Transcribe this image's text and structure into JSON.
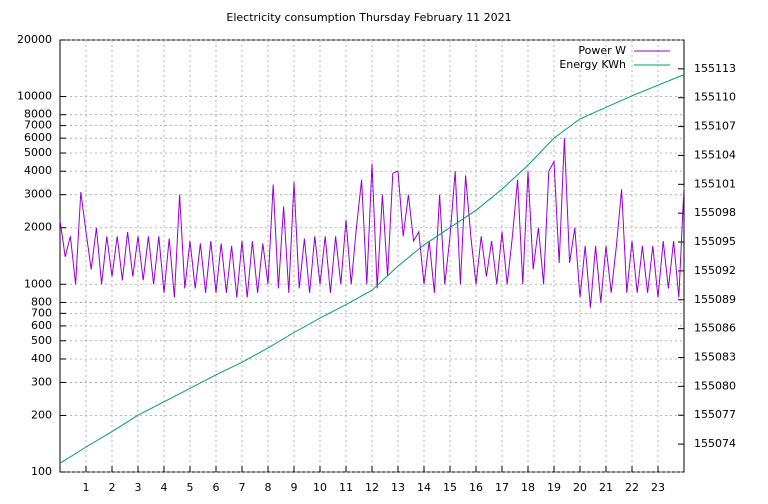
{
  "chart_data": {
    "type": "line",
    "title": "Electricity consumption Thursday February 11 2021",
    "xlim": [
      0,
      24
    ],
    "xticks": [
      1,
      2,
      3,
      4,
      5,
      6,
      7,
      8,
      9,
      10,
      11,
      12,
      13,
      14,
      15,
      16,
      17,
      18,
      19,
      20,
      21,
      22,
      23
    ],
    "ylim": [
      100,
      20000
    ],
    "log_y": true,
    "yticks": [
      100,
      200,
      300,
      400,
      500,
      600,
      700,
      800,
      1000,
      2000,
      3000,
      4000,
      5000,
      6000,
      7000,
      8000,
      10000,
      20000
    ],
    "y2lim": [
      155071.1,
      155116
    ],
    "y2ticks": [
      155074,
      155077,
      155080,
      155083,
      155086,
      155089,
      155092,
      155095,
      155098,
      155101,
      155104,
      155107,
      155110,
      155113
    ],
    "grid": true,
    "legend": "top-right",
    "series": [
      {
        "name": "Power W",
        "color": "#9400d3",
        "x": [
          0,
          0.2,
          0.4,
          0.6,
          0.8,
          1,
          1.2,
          1.4,
          1.6,
          1.8,
          2,
          2.2,
          2.4,
          2.6,
          2.8,
          3,
          3.2,
          3.4,
          3.6,
          3.8,
          4,
          4.2,
          4.4,
          4.6,
          4.8,
          5,
          5.2,
          5.4,
          5.6,
          5.8,
          6,
          6.2,
          6.4,
          6.6,
          6.8,
          7,
          7.2,
          7.4,
          7.6,
          7.8,
          8,
          8.2,
          8.4,
          8.6,
          8.8,
          9,
          9.2,
          9.4,
          9.6,
          9.8,
          10,
          10.2,
          10.4,
          10.6,
          10.8,
          11,
          11.2,
          11.4,
          11.6,
          11.8,
          12,
          12.2,
          12.4,
          12.6,
          12.8,
          13,
          13.2,
          13.4,
          13.6,
          13.8,
          14,
          14.2,
          14.4,
          14.6,
          14.8,
          15,
          15.2,
          15.4,
          15.6,
          15.8,
          16,
          16.2,
          16.4,
          16.6,
          16.8,
          17,
          17.2,
          17.4,
          17.6,
          17.8,
          18,
          18.2,
          18.4,
          18.6,
          18.8,
          19,
          19.2,
          19.4,
          19.6,
          19.8,
          20,
          20.2,
          20.4,
          20.6,
          20.8,
          21,
          21.2,
          21.4,
          21.6,
          21.8,
          22,
          22.2,
          22.4,
          22.6,
          22.8,
          23,
          23.2,
          23.4,
          23.6,
          23.8,
          24
        ],
        "values": [
          2200,
          1400,
          1800,
          1000,
          3100,
          1900,
          1200,
          2000,
          1000,
          1800,
          1100,
          1800,
          1050,
          1900,
          1100,
          1800,
          1050,
          1800,
          1000,
          1800,
          900,
          1750,
          850,
          3000,
          950,
          1700,
          950,
          1650,
          900,
          1700,
          900,
          1650,
          900,
          1600,
          850,
          1700,
          850,
          1700,
          900,
          1650,
          1000,
          3400,
          950,
          2600,
          900,
          3500,
          950,
          1750,
          900,
          1800,
          1000,
          1800,
          900,
          1800,
          1000,
          2200,
          1000,
          2000,
          3600,
          1000,
          4400,
          950,
          3000,
          1100,
          3900,
          4000,
          1800,
          3000,
          1700,
          1900,
          1000,
          1700,
          900,
          3000,
          1000,
          1800,
          4000,
          1000,
          3800,
          1800,
          1000,
          1800,
          1100,
          1700,
          1000,
          1900,
          1000,
          1800,
          3600,
          1000,
          4000,
          1200,
          2000,
          1000,
          4000,
          4500,
          1300,
          6000,
          1300,
          2000,
          850,
          1600,
          750,
          1600,
          800,
          1600,
          900,
          1600,
          3200,
          900,
          1700,
          900,
          1600,
          900,
          1600,
          850,
          1700,
          950,
          1700,
          850,
          3300
        ]
      },
      {
        "name": "Energy KWh",
        "color": "#009e73",
        "axis": "y2",
        "x": [
          0,
          1,
          2,
          3,
          4,
          5,
          6,
          7,
          8,
          9,
          10,
          11,
          12,
          13,
          14,
          15,
          16,
          17,
          18,
          19,
          20,
          21,
          22,
          23,
          24
        ],
        "values": [
          155072.0,
          155073.7,
          155075.3,
          155077.0,
          155078.4,
          155079.8,
          155081.2,
          155082.5,
          155084.0,
          155085.6,
          155087.1,
          155088.5,
          155090.0,
          155092.5,
          155094.7,
          155096.5,
          155098.3,
          155100.5,
          155103.0,
          155105.8,
          155107.8,
          155109.0,
          155110.2,
          155111.3,
          155112.4
        ]
      }
    ]
  }
}
